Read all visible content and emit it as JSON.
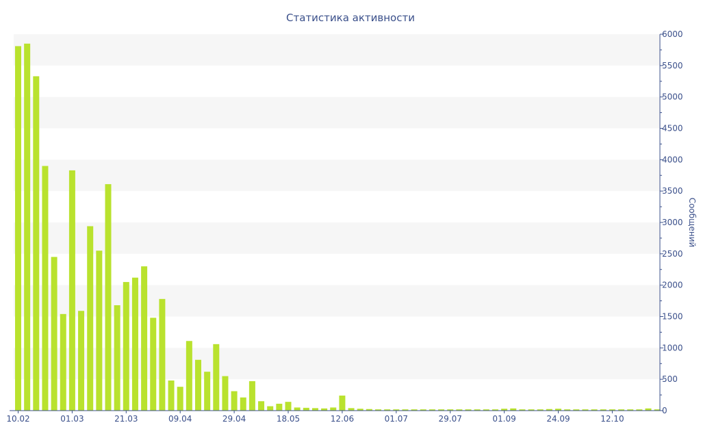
{
  "chart_data": {
    "type": "bar",
    "title": "Статистика активности",
    "ylabel": "Сообщений",
    "xlabel": "",
    "y_axis_position": "right",
    "ylim": [
      0,
      6000
    ],
    "y_ticks": [
      0,
      500,
      1000,
      1500,
      2000,
      2500,
      3000,
      3500,
      4000,
      4500,
      5000,
      5500,
      6000
    ],
    "x_tick_labels": [
      {
        "index": 0,
        "label": "10.02"
      },
      {
        "index": 6,
        "label": "01.03"
      },
      {
        "index": 12,
        "label": "21.03"
      },
      {
        "index": 18,
        "label": "09.04"
      },
      {
        "index": 24,
        "label": "29.04"
      },
      {
        "index": 30,
        "label": "18.05"
      },
      {
        "index": 36,
        "label": "12.06"
      },
      {
        "index": 42,
        "label": "01.07"
      },
      {
        "index": 48,
        "label": "29.07"
      },
      {
        "index": 54,
        "label": "01.09"
      },
      {
        "index": 60,
        "label": "24.09"
      },
      {
        "index": 66,
        "label": "12.10"
      }
    ],
    "grid": "alternating horizontal bands",
    "legend": "none",
    "series": [
      {
        "color": "#b9e22e",
        "values": [
          5810,
          5850,
          5330,
          3900,
          2450,
          1540,
          3830,
          1590,
          2940,
          2550,
          3610,
          1680,
          2050,
          2120,
          2300,
          1480,
          1780,
          480,
          380,
          1110,
          810,
          620,
          1060,
          550,
          310,
          210,
          470,
          150,
          70,
          110,
          140,
          50,
          45,
          40,
          35,
          50,
          240,
          40,
          30,
          25,
          20,
          20,
          20,
          20,
          20,
          20,
          20,
          20,
          20,
          20,
          20,
          20,
          20,
          20,
          30,
          35,
          20,
          20,
          20,
          25,
          30,
          20,
          20,
          20,
          20,
          20,
          20,
          20,
          20,
          20,
          35,
          20
        ]
      }
    ]
  },
  "colors": {
    "bar": "#b9e22e",
    "band": "#f6f6f6",
    "axis": "#3a4f8a",
    "text": "#3a4f8a"
  }
}
